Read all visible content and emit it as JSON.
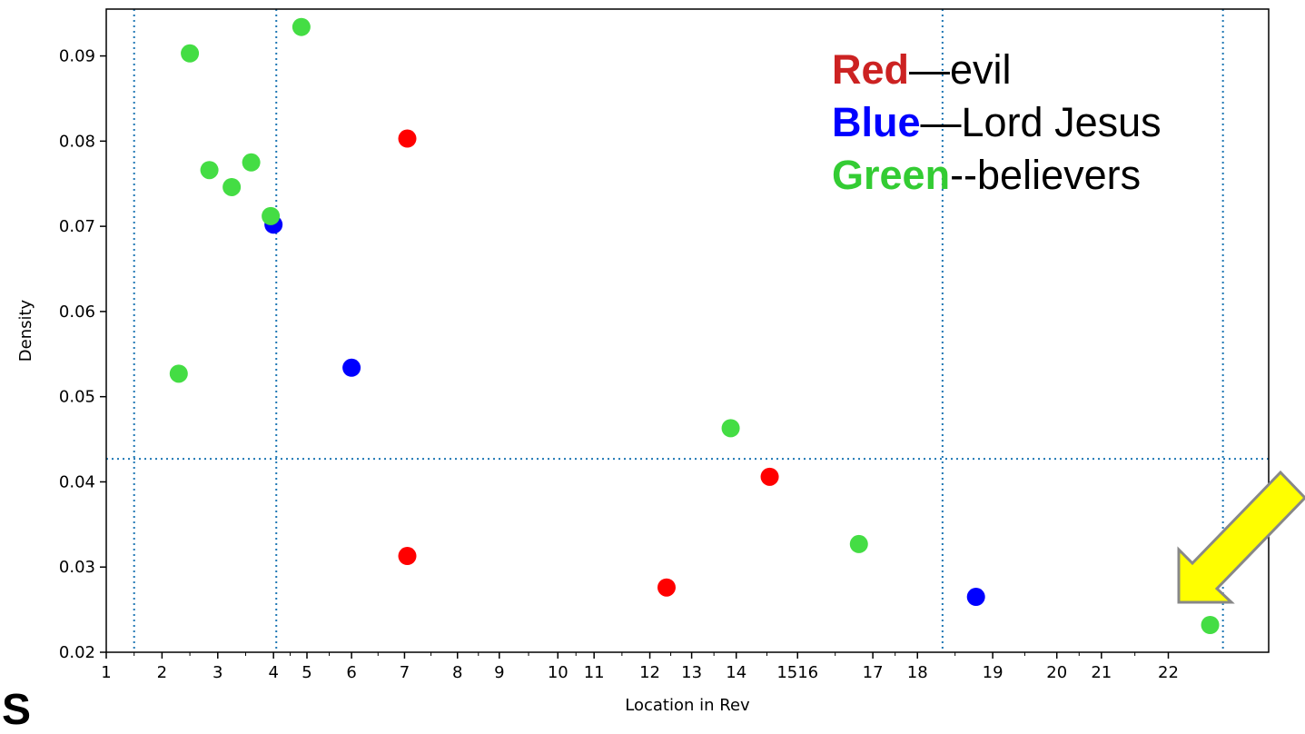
{
  "chart_data": {
    "type": "scatter",
    "xlabel": "Location in Rev",
    "ylabel": "Density",
    "x_ticks": [
      {
        "label": "1",
        "pos": 0.0
      },
      {
        "label": "2",
        "pos": 1.0
      },
      {
        "label": "3",
        "pos": 2.0
      },
      {
        "label": "4",
        "pos": 3.0
      },
      {
        "label": "5",
        "pos": 3.6
      },
      {
        "label": "6",
        "pos": 4.4
      },
      {
        "label": "7",
        "pos": 5.35
      },
      {
        "label": "8",
        "pos": 6.3
      },
      {
        "label": "9",
        "pos": 7.05
      },
      {
        "label": "10",
        "pos": 8.1
      },
      {
        "label": "11",
        "pos": 8.75
      },
      {
        "label": "12",
        "pos": 9.75
      },
      {
        "label": "13",
        "pos": 10.5
      },
      {
        "label": "14",
        "pos": 11.3
      },
      {
        "label": "1516",
        "pos": 12.4
      },
      {
        "label": "17",
        "pos": 13.75
      },
      {
        "label": "18",
        "pos": 14.55
      },
      {
        "label": "19",
        "pos": 15.9
      },
      {
        "label": "20",
        "pos": 17.05
      },
      {
        "label": "21",
        "pos": 17.85
      },
      {
        "label": "22",
        "pos": 19.05
      }
    ],
    "xlim": [
      0,
      20.85
    ],
    "ylim": [
      0.02,
      0.0955
    ],
    "y_ticks": [
      "0.02",
      "0.03",
      "0.04",
      "0.05",
      "0.06",
      "0.07",
      "0.08",
      "0.09"
    ],
    "vlines": [
      0.5,
      3.05,
      15.0,
      20.03
    ],
    "hline": 0.0427,
    "grid": false,
    "series": [
      {
        "name": "evil",
        "color": "#ff0000",
        "points": [
          [
            5.4,
            0.0803
          ],
          [
            5.4,
            0.0313
          ],
          [
            10.05,
            0.0276
          ],
          [
            11.9,
            0.0406
          ]
        ]
      },
      {
        "name": "Lord Jesus",
        "color": "#0000ff",
        "points": [
          [
            3.0,
            0.0702
          ],
          [
            4.4,
            0.0534
          ],
          [
            15.6,
            0.0265
          ]
        ]
      },
      {
        "name": "believers",
        "color": "#44dd44",
        "points": [
          [
            1.5,
            0.0903
          ],
          [
            1.3,
            0.0527
          ],
          [
            1.85,
            0.0766
          ],
          [
            2.25,
            0.0746
          ],
          [
            2.6,
            0.0775
          ],
          [
            2.95,
            0.0712
          ],
          [
            3.5,
            0.0934
          ],
          [
            11.2,
            0.0463
          ],
          [
            13.5,
            0.0327
          ],
          [
            19.8,
            0.0232
          ]
        ]
      }
    ]
  },
  "legend": {
    "red_word": "Red",
    "red_text": "—evil",
    "blue_word": "Blue",
    "blue_text": "—Lord Jesus",
    "green_word": "Green",
    "green_text": "--believers",
    "red_color": "#cc2222",
    "blue_color": "#0000ff",
    "green_color": "#33cc33"
  },
  "annotation": {
    "arrow_color": "#ffff00",
    "arrow_outline": "#888888"
  },
  "corner_text": "S"
}
